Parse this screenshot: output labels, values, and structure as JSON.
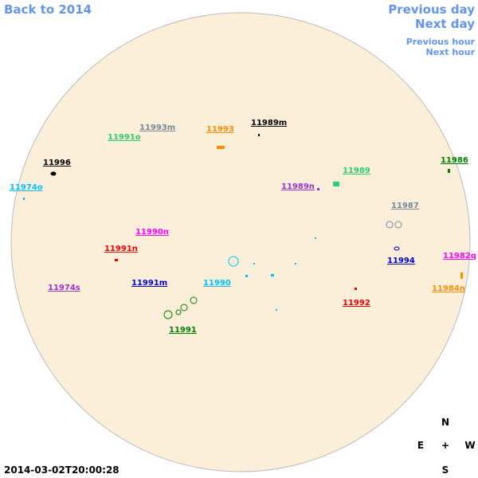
{
  "header": {
    "back_link": "Back to 2014",
    "previous_day": "Previous day",
    "next_day": "Next day",
    "previous_hour": "Previous hour",
    "next_hour": "Next hour"
  },
  "regions": [
    "11993m",
    "11993",
    "11989m",
    "11991o",
    "11996",
    "11974o",
    "11986",
    "11989",
    "11989n",
    "11987",
    "11990n",
    "11991n",
    "11994",
    "11982q",
    "11991m",
    "11990",
    "11974s",
    "11984n",
    "11992",
    "11991"
  ],
  "compass": {
    "north": "N",
    "east": "E",
    "center": "+",
    "west": "W",
    "south": "S"
  },
  "timestamp": "2014-03-02T20:00:28"
}
